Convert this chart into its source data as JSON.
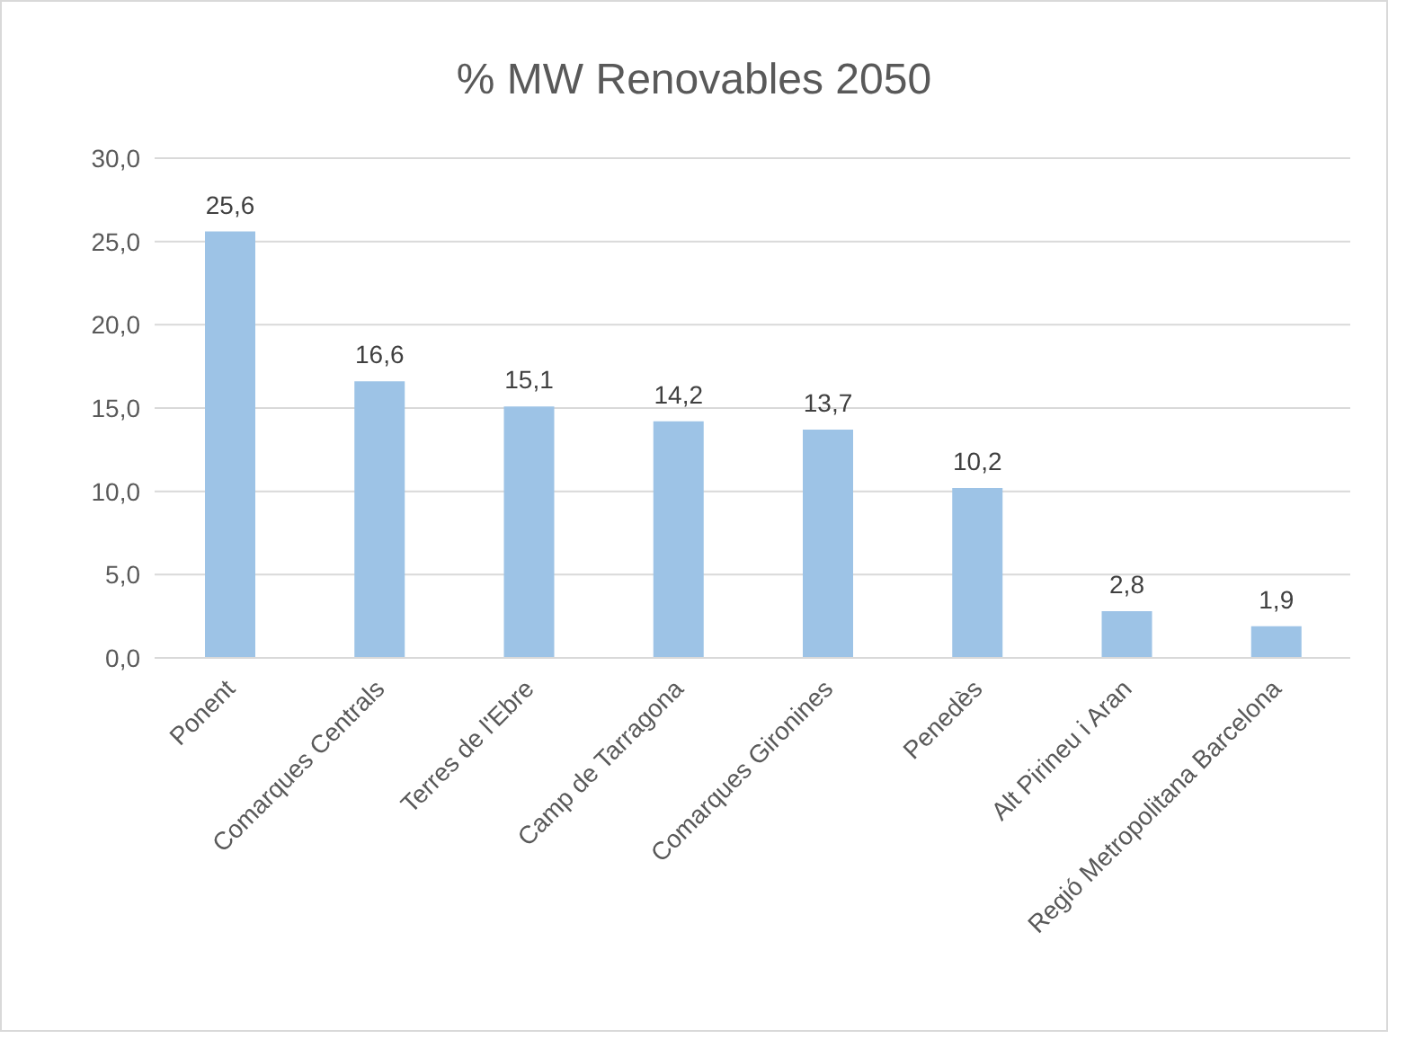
{
  "chart_data": {
    "type": "bar",
    "title": "% MW Renovables 2050",
    "categories": [
      "Ponent",
      "Comarques Centrals",
      "Terres de l'Ebre",
      "Camp de Tarragona",
      "Comarques Gironines",
      "Penedès",
      "Alt Pirineu i Aran",
      "Regió Metropolitana Barcelona"
    ],
    "values": [
      25.6,
      16.6,
      15.1,
      14.2,
      13.7,
      10.2,
      2.8,
      1.9
    ],
    "value_labels": [
      "25,6",
      "16,6",
      "15,1",
      "14,2",
      "13,7",
      "10,2",
      "2,8",
      "1,9"
    ],
    "color": "#9dc3e6",
    "ylim": [
      0,
      30
    ],
    "yticks": [
      {
        "value": 0,
        "label": "0,0"
      },
      {
        "value": 5,
        "label": "5,0"
      },
      {
        "value": 10,
        "label": "10,0"
      },
      {
        "value": 15,
        "label": "15,0"
      },
      {
        "value": 20,
        "label": "20,0"
      },
      {
        "value": 25,
        "label": "25,0"
      },
      {
        "value": 30,
        "label": "30,0"
      }
    ],
    "grid": "y",
    "legend": false
  }
}
